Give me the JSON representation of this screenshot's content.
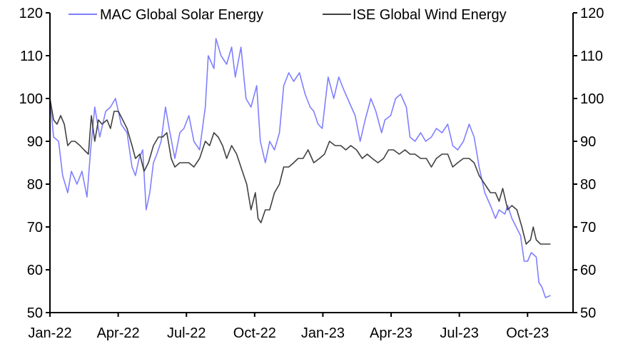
{
  "chart_data": {
    "type": "line",
    "title": "",
    "xlabel": "",
    "ylabel": "",
    "x_unit": "months since Jan-22",
    "xlim": [
      0,
      23
    ],
    "ylim": [
      50,
      120
    ],
    "yticks": [
      50,
      60,
      70,
      80,
      90,
      100,
      110,
      120
    ],
    "xticks": [
      {
        "x": 0,
        "label": "Jan-22"
      },
      {
        "x": 3,
        "label": "Apr-22"
      },
      {
        "x": 6,
        "label": "Jul-22"
      },
      {
        "x": 9,
        "label": "Oct-22"
      },
      {
        "x": 12,
        "label": "Jan-23"
      },
      {
        "x": 15,
        "label": "Apr-23"
      },
      {
        "x": 18,
        "label": "Jul-23"
      },
      {
        "x": 21,
        "label": "Oct-23"
      }
    ],
    "grid": false,
    "legend_position": "top",
    "series": [
      {
        "name": "MAC Global Solar Energy",
        "color": "#7F7FFF",
        "points": [
          [
            0,
            100
          ],
          [
            0.16,
            91
          ],
          [
            0.38,
            90
          ],
          [
            0.56,
            82
          ],
          [
            0.78,
            78
          ],
          [
            0.94,
            83
          ],
          [
            1.19,
            80
          ],
          [
            1.41,
            83
          ],
          [
            1.63,
            77
          ],
          [
            1.79,
            88
          ],
          [
            1.97,
            98
          ],
          [
            2.19,
            91
          ],
          [
            2.45,
            97
          ],
          [
            2.66,
            98
          ],
          [
            2.88,
            100
          ],
          [
            3.13,
            94
          ],
          [
            3.39,
            92
          ],
          [
            3.61,
            84
          ],
          [
            3.76,
            82
          ],
          [
            3.92,
            86
          ],
          [
            4.08,
            88
          ],
          [
            4.23,
            74
          ],
          [
            4.39,
            78
          ],
          [
            4.55,
            85
          ],
          [
            4.7,
            87
          ],
          [
            4.89,
            90
          ],
          [
            5.08,
            98
          ],
          [
            5.24,
            93
          ],
          [
            5.49,
            86
          ],
          [
            5.71,
            92
          ],
          [
            5.89,
            93
          ],
          [
            6.11,
            96
          ],
          [
            6.33,
            90
          ],
          [
            6.58,
            88
          ],
          [
            6.83,
            98
          ],
          [
            6.96,
            110
          ],
          [
            7.21,
            107
          ],
          [
            7.3,
            114
          ],
          [
            7.52,
            110
          ],
          [
            7.77,
            108
          ],
          [
            7.99,
            112
          ],
          [
            8.15,
            105
          ],
          [
            8.4,
            112
          ],
          [
            8.62,
            100
          ],
          [
            8.84,
            98
          ],
          [
            9.09,
            103
          ],
          [
            9.25,
            90
          ],
          [
            9.47,
            85
          ],
          [
            9.66,
            90
          ],
          [
            9.87,
            88
          ],
          [
            10.09,
            92
          ],
          [
            10.28,
            103
          ],
          [
            10.5,
            106
          ],
          [
            10.72,
            104
          ],
          [
            10.97,
            106
          ],
          [
            11.22,
            101
          ],
          [
            11.44,
            98
          ],
          [
            11.6,
            97
          ],
          [
            11.79,
            94
          ],
          [
            11.97,
            93
          ],
          [
            12.23,
            105
          ],
          [
            12.48,
            100
          ],
          [
            12.7,
            105
          ],
          [
            12.92,
            102
          ],
          [
            13.17,
            99
          ],
          [
            13.42,
            96
          ],
          [
            13.64,
            90
          ],
          [
            13.86,
            95
          ],
          [
            14.11,
            100
          ],
          [
            14.33,
            97
          ],
          [
            14.58,
            92
          ],
          [
            14.73,
            95
          ],
          [
            14.98,
            96
          ],
          [
            15.2,
            100
          ],
          [
            15.42,
            101
          ],
          [
            15.67,
            98
          ],
          [
            15.83,
            91
          ],
          [
            16.05,
            90
          ],
          [
            16.3,
            92
          ],
          [
            16.52,
            90
          ],
          [
            16.77,
            91
          ],
          [
            16.99,
            93
          ],
          [
            17.24,
            92
          ],
          [
            17.49,
            94
          ],
          [
            17.71,
            89
          ],
          [
            17.93,
            88
          ],
          [
            18.18,
            90
          ],
          [
            18.43,
            94
          ],
          [
            18.65,
            91
          ],
          [
            18.87,
            84
          ],
          [
            19.12,
            78
          ],
          [
            19.37,
            75
          ],
          [
            19.59,
            72
          ],
          [
            19.75,
            74
          ],
          [
            20.0,
            73
          ],
          [
            20.13,
            75
          ],
          [
            20.31,
            72
          ],
          [
            20.5,
            70
          ],
          [
            20.69,
            68
          ],
          [
            20.85,
            62
          ],
          [
            21.0,
            62
          ],
          [
            21.16,
            64
          ],
          [
            21.38,
            63
          ],
          [
            21.5,
            57
          ],
          [
            21.63,
            56
          ],
          [
            21.79,
            53.5
          ],
          [
            22.01,
            54
          ]
        ]
      },
      {
        "name": "ISE Global Wind Energy",
        "color": "#404040",
        "points": [
          [
            0,
            100
          ],
          [
            0.16,
            95
          ],
          [
            0.31,
            94
          ],
          [
            0.47,
            96
          ],
          [
            0.63,
            94
          ],
          [
            0.78,
            89
          ],
          [
            0.94,
            90
          ],
          [
            1.1,
            90
          ],
          [
            1.32,
            89
          ],
          [
            1.5,
            88
          ],
          [
            1.69,
            87
          ],
          [
            1.82,
            96
          ],
          [
            1.97,
            90
          ],
          [
            2.13,
            95
          ],
          [
            2.29,
            94
          ],
          [
            2.51,
            95
          ],
          [
            2.66,
            93
          ],
          [
            2.82,
            97
          ],
          [
            3.01,
            97
          ],
          [
            3.2,
            95
          ],
          [
            3.39,
            93
          ],
          [
            3.61,
            89
          ],
          [
            3.76,
            86
          ],
          [
            3.95,
            87
          ],
          [
            4.14,
            83
          ],
          [
            4.33,
            85
          ],
          [
            4.55,
            89
          ],
          [
            4.77,
            91
          ],
          [
            4.95,
            91
          ],
          [
            5.14,
            92
          ],
          [
            5.33,
            86
          ],
          [
            5.49,
            84
          ],
          [
            5.71,
            85
          ],
          [
            5.89,
            85
          ],
          [
            6.11,
            85
          ],
          [
            6.33,
            84
          ],
          [
            6.58,
            86
          ],
          [
            6.83,
            90
          ],
          [
            7.02,
            89
          ],
          [
            7.21,
            92
          ],
          [
            7.4,
            91
          ],
          [
            7.59,
            89
          ],
          [
            7.77,
            86
          ],
          [
            7.99,
            89
          ],
          [
            8.21,
            87
          ],
          [
            8.46,
            83
          ],
          [
            8.65,
            80
          ],
          [
            8.84,
            74
          ],
          [
            9.03,
            78
          ],
          [
            9.15,
            72
          ],
          [
            9.28,
            71
          ],
          [
            9.47,
            74
          ],
          [
            9.66,
            74
          ],
          [
            9.87,
            78
          ],
          [
            10.09,
            80
          ],
          [
            10.28,
            84
          ],
          [
            10.5,
            84
          ],
          [
            10.72,
            85
          ],
          [
            10.91,
            86
          ],
          [
            11.13,
            86
          ],
          [
            11.35,
            88
          ],
          [
            11.6,
            85
          ],
          [
            11.85,
            86
          ],
          [
            12.07,
            87
          ],
          [
            12.29,
            90
          ],
          [
            12.54,
            89
          ],
          [
            12.79,
            89
          ],
          [
            13.01,
            88
          ],
          [
            13.23,
            89
          ],
          [
            13.48,
            88
          ],
          [
            13.73,
            86
          ],
          [
            13.95,
            87
          ],
          [
            14.17,
            86
          ],
          [
            14.42,
            85
          ],
          [
            14.67,
            86
          ],
          [
            14.89,
            88
          ],
          [
            15.11,
            88
          ],
          [
            15.36,
            87
          ],
          [
            15.61,
            88
          ],
          [
            15.83,
            87
          ],
          [
            16.05,
            87
          ],
          [
            16.3,
            86
          ],
          [
            16.55,
            86
          ],
          [
            16.77,
            84
          ],
          [
            16.99,
            86
          ],
          [
            17.24,
            87
          ],
          [
            17.49,
            87
          ],
          [
            17.71,
            84
          ],
          [
            17.93,
            85
          ],
          [
            18.18,
            86
          ],
          [
            18.43,
            86
          ],
          [
            18.65,
            85
          ],
          [
            18.87,
            82
          ],
          [
            19.12,
            80
          ],
          [
            19.37,
            78
          ],
          [
            19.59,
            78
          ],
          [
            19.75,
            76
          ],
          [
            19.91,
            79
          ],
          [
            20.13,
            74
          ],
          [
            20.31,
            75
          ],
          [
            20.53,
            74
          ],
          [
            20.75,
            70
          ],
          [
            20.94,
            66
          ],
          [
            21.13,
            67
          ],
          [
            21.25,
            70
          ],
          [
            21.38,
            67
          ],
          [
            21.57,
            66
          ],
          [
            21.79,
            66
          ],
          [
            22.01,
            66
          ]
        ]
      }
    ]
  }
}
